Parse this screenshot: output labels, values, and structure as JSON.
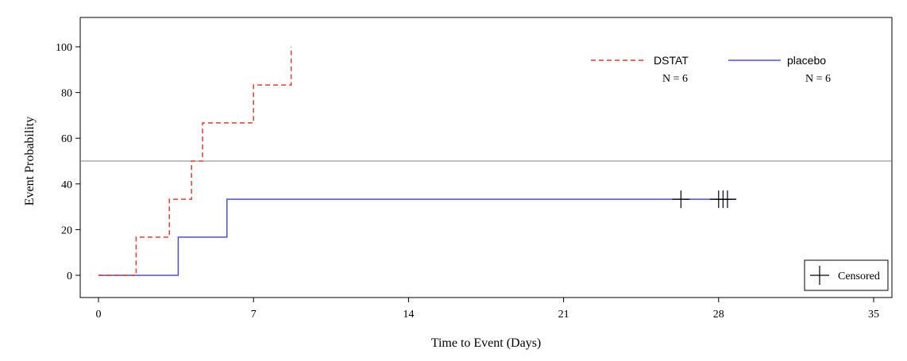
{
  "chart_data": {
    "type": "line",
    "step": true,
    "xlabel": "Time to Event (Days)",
    "ylabel": "Event Probability",
    "xlim": [
      0,
      35
    ],
    "ylim": [
      0,
      100
    ],
    "xticks": [
      0,
      7,
      14,
      21,
      28,
      35
    ],
    "yticks": [
      0,
      20,
      40,
      60,
      80,
      100
    ],
    "reference_line_y": 50,
    "legend": {
      "placement": "top-right",
      "entries": [
        {
          "name": "DSTAT",
          "n_label": "N = 6",
          "color": "#e03c31",
          "style": "dashed"
        },
        {
          "name": "placebo",
          "n_label": "N = 6",
          "color": "#4a4fe0",
          "style": "solid"
        }
      ]
    },
    "censor_legend": {
      "label": "Censored",
      "placement": "bottom-right"
    },
    "series": [
      {
        "name": "DSTAT",
        "color": "#e03c31",
        "style": "dashed",
        "x": [
          0,
          1.7,
          3.2,
          4.2,
          4.7,
          7.0,
          8.7,
          8.7
        ],
        "y": [
          0,
          16.7,
          33.3,
          50.0,
          66.7,
          83.3,
          83.3,
          100
        ]
      },
      {
        "name": "placebo",
        "color": "#4a4fe0",
        "style": "solid",
        "x": [
          0,
          3.6,
          5.8,
          28.8
        ],
        "y": [
          0,
          16.7,
          33.3,
          33.3
        ],
        "censored": [
          {
            "x": 26.3,
            "y": 33.3
          },
          {
            "x": 28.0,
            "y": 33.3
          },
          {
            "x": 28.2,
            "y": 33.3
          },
          {
            "x": 28.4,
            "y": 33.3
          }
        ]
      }
    ]
  }
}
